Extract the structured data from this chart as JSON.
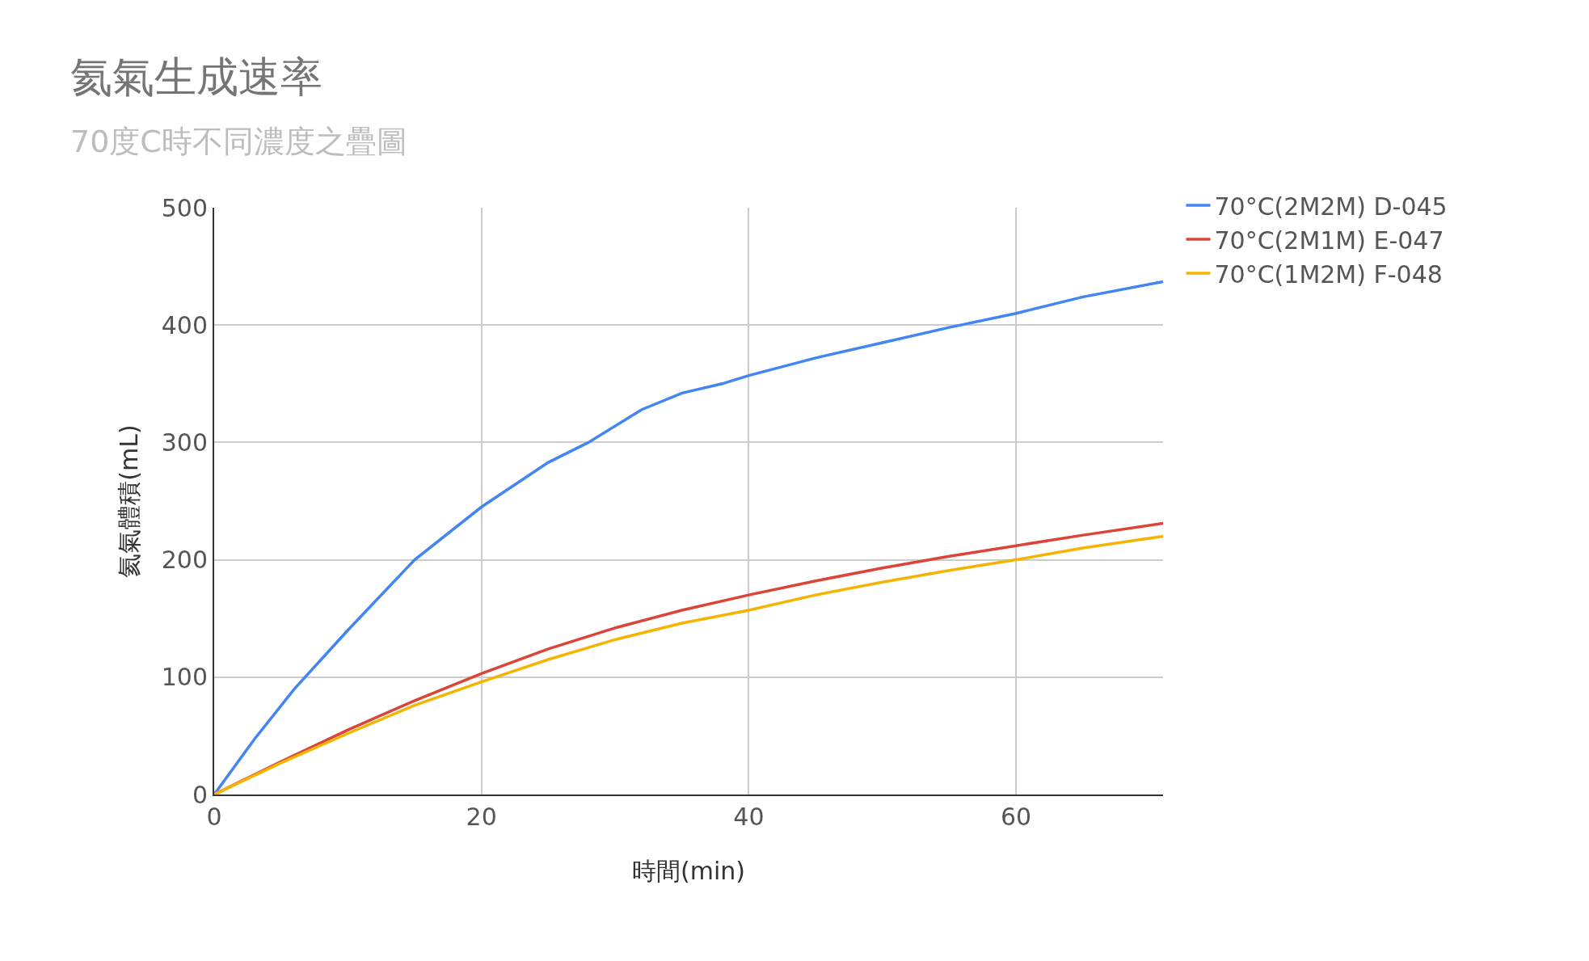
{
  "chart_data": {
    "type": "line",
    "title": "氦氣生成速率",
    "subtitle": "70度C時不同濃度之疊圖",
    "xlabel": "時間(min)",
    "ylabel": "氦氣體積(mL)",
    "xlim": [
      0,
      71
    ],
    "xticks": [
      0,
      20,
      40,
      60
    ],
    "ylim": [
      0,
      500
    ],
    "yticks": [
      0,
      100,
      200,
      300,
      400,
      500
    ],
    "grid": true,
    "legend": "top right",
    "marker": "none",
    "line_style": "solid",
    "series": [
      {
        "name": "70°C(2M2M) D-045",
        "color": "#4285f4",
        "x": [
          0,
          3,
          6,
          10,
          15,
          20,
          25,
          28,
          32,
          35,
          38,
          40,
          45,
          50,
          55,
          60,
          65,
          71
        ],
        "values": [
          0,
          47,
          90,
          140,
          200,
          245,
          283,
          300,
          328,
          342,
          350,
          357,
          372,
          385,
          398,
          410,
          424,
          437
        ]
      },
      {
        "name": "70°C(2M1M) E-047",
        "color": "#db4437",
        "x": [
          0,
          5,
          10,
          15,
          20,
          25,
          30,
          35,
          40,
          45,
          50,
          55,
          60,
          65,
          71
        ],
        "values": [
          0,
          28,
          55,
          80,
          103,
          124,
          142,
          157,
          170,
          182,
          193,
          203,
          212,
          221,
          231
        ]
      },
      {
        "name": "70°C(1M2M) F-048",
        "color": "#f4b400",
        "x": [
          0,
          5,
          10,
          15,
          20,
          25,
          30,
          35,
          40,
          45,
          50,
          55,
          60,
          65,
          71
        ],
        "values": [
          0,
          27,
          52,
          76,
          96,
          115,
          132,
          146,
          157,
          170,
          181,
          191,
          200,
          210,
          220
        ]
      }
    ]
  }
}
